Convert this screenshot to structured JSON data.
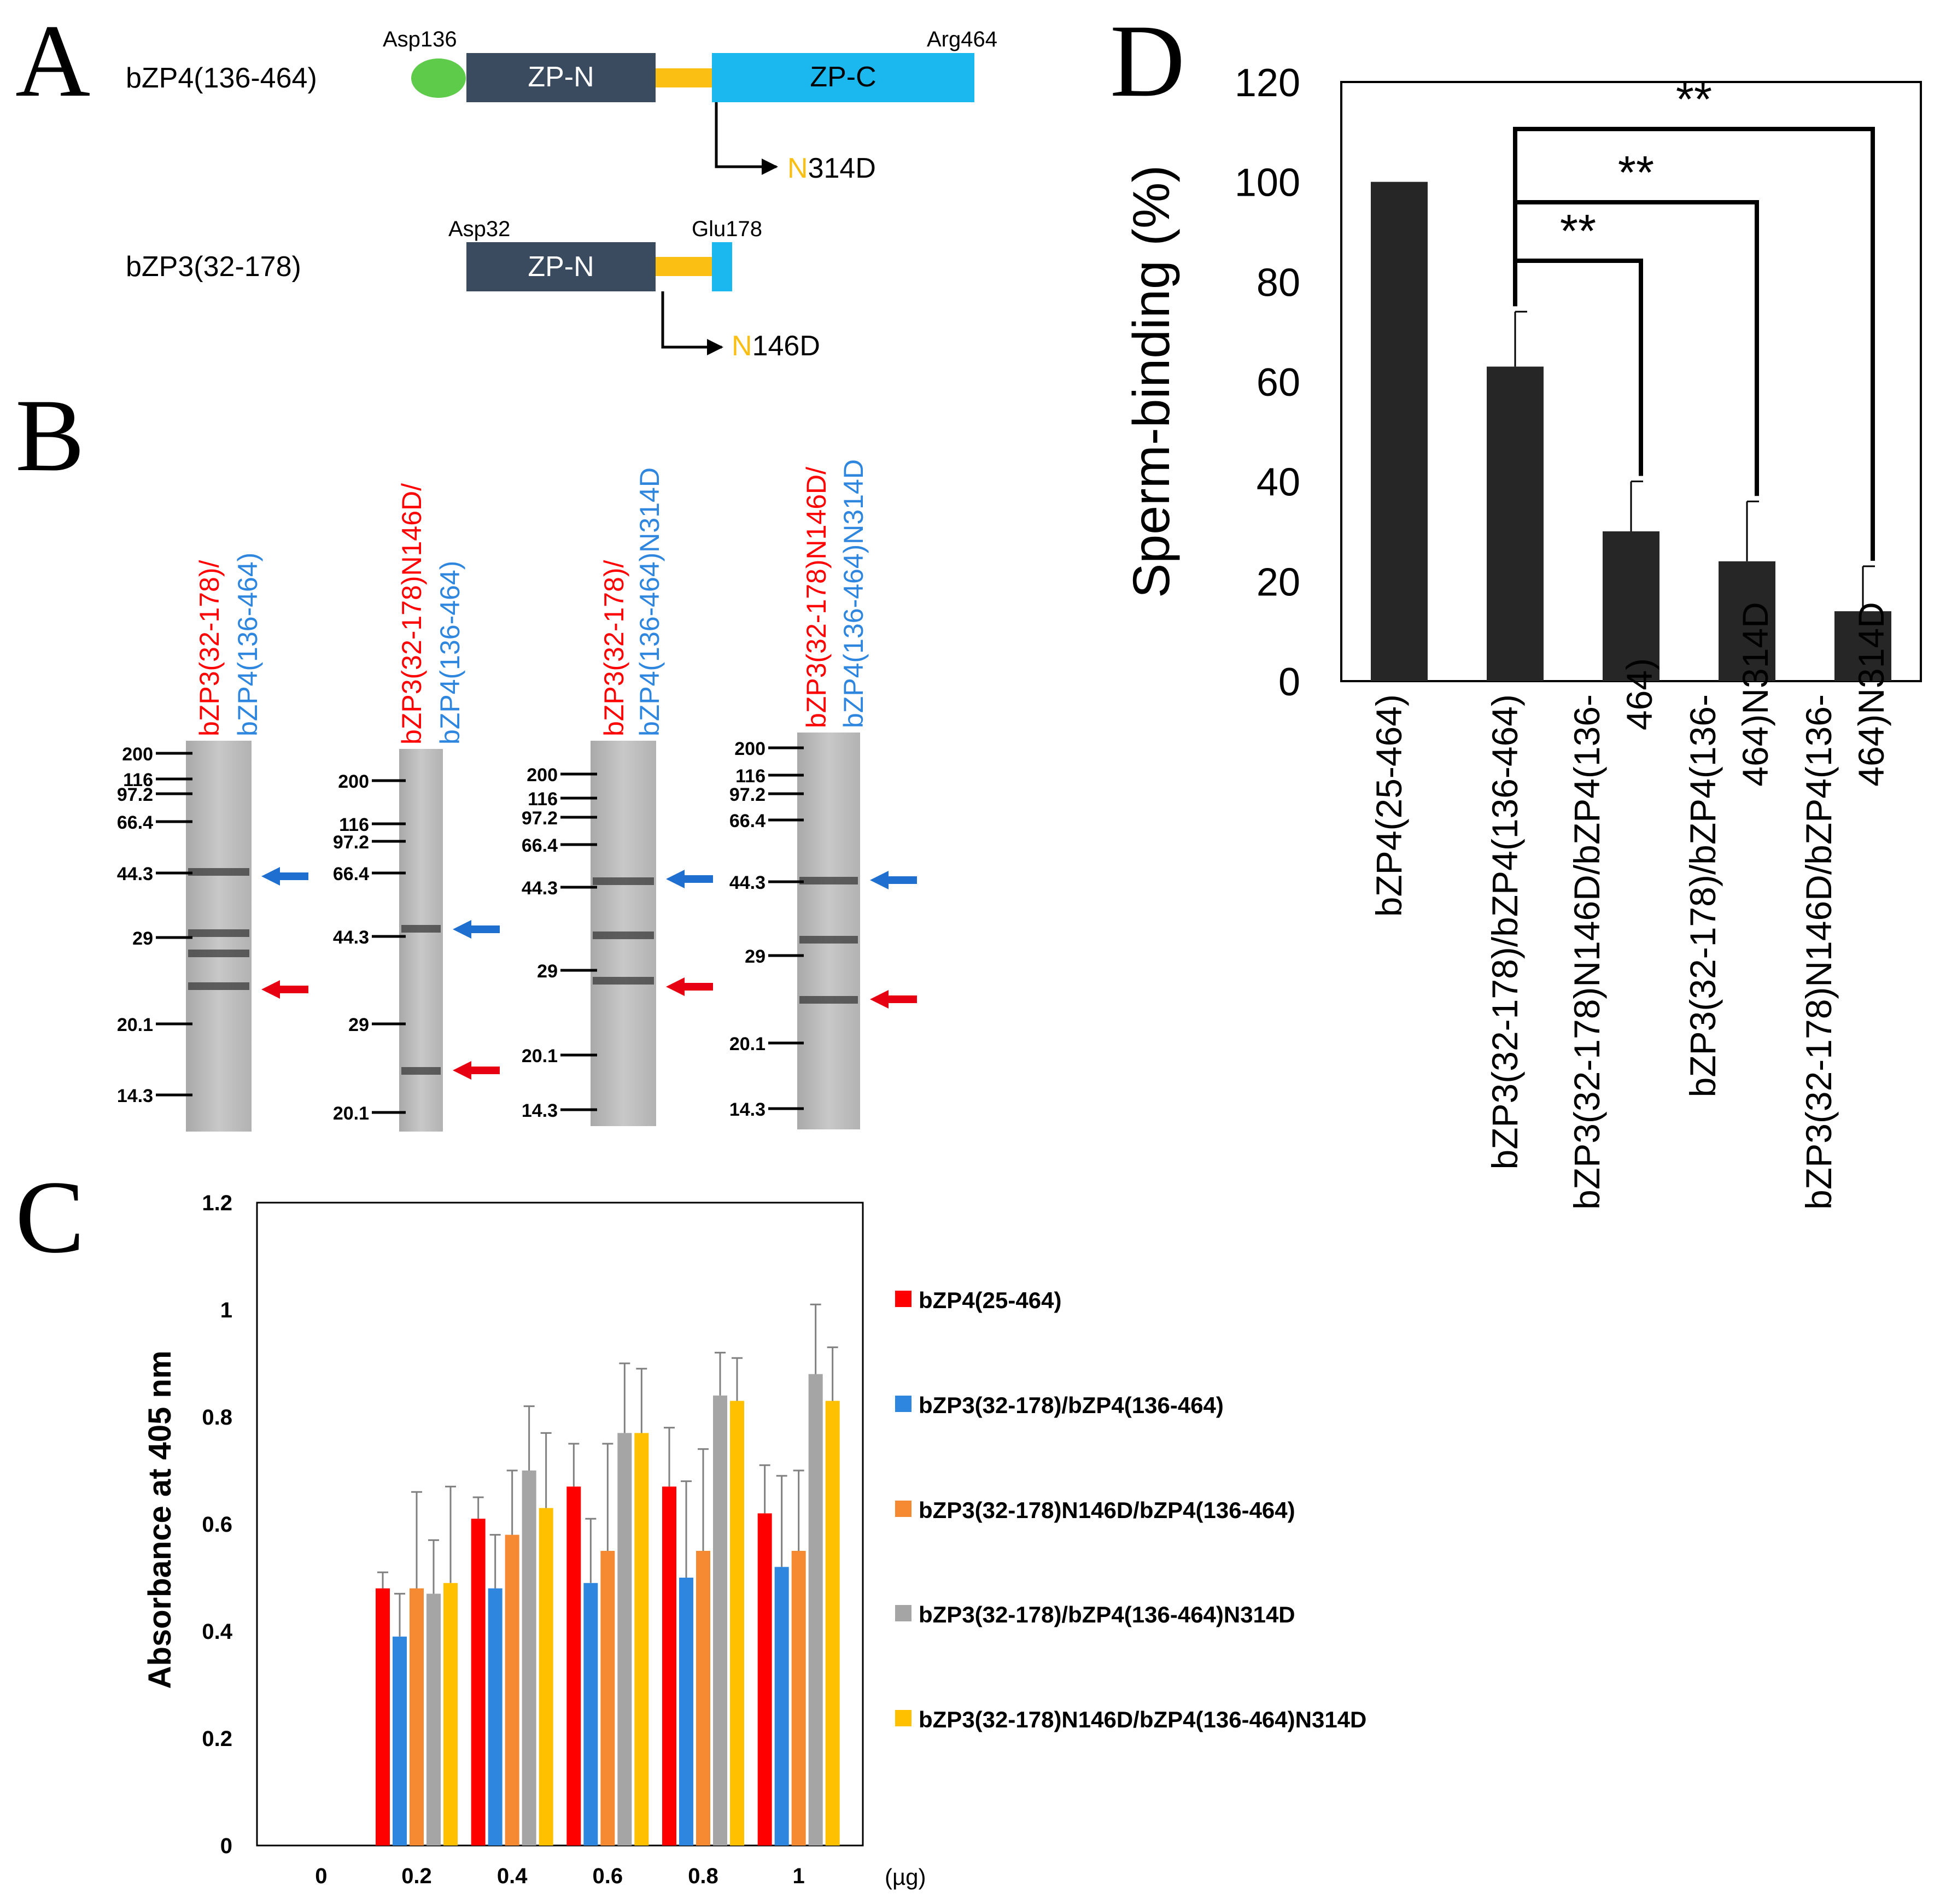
{
  "panels": {
    "a": "A",
    "b": "B",
    "c": "C",
    "d": "D"
  },
  "colors": {
    "red": "#ff0000",
    "blue": "#2e86de",
    "blue_marker": "#1f6fd1",
    "orange": "#f58a33",
    "gray": "#a5a5a5",
    "yellow": "#ffc000",
    "dark": "#3a4a5f",
    "cyan": "#1ab8ee",
    "green": "#5ecb4a",
    "gold": "#fbbf14"
  },
  "panelA": {
    "zp4": {
      "name": "bZP4(136-464)",
      "start": "Asp136",
      "end": "Arg464",
      "dom1": "ZP-N",
      "dom2": "ZP-C",
      "mut_letter": "N",
      "mut_rest": "314D"
    },
    "zp3": {
      "name": "bZP3(32-178)",
      "start": "Asp32",
      "end": "Glu178",
      "dom1": "ZP-N",
      "mut_letter": "N",
      "mut_rest": "146D"
    }
  },
  "panelB": {
    "gels": [
      {
        "top_red": "bZP3(32-178)/",
        "bottom_blue": "bZP4(136-464)",
        "markers": [
          "200",
          "116",
          "97.2",
          "66.4",
          "44.3",
          "29",
          "20.1",
          "14.3"
        ]
      },
      {
        "top_red": "bZP3(32-178)N146D/",
        "bottom_blue": "bZP4(136-464)",
        "markers": [
          "200",
          "116",
          "97.2",
          "66.4",
          "44.3",
          "29",
          "20.1"
        ]
      },
      {
        "top_red": "bZP3(32-178)/",
        "bottom_blue": "bZP4(136-464)N314D",
        "markers": [
          "200",
          "116",
          "97.2",
          "66.4",
          "44.3",
          "29",
          "20.1",
          "14.3"
        ]
      },
      {
        "top_red": "bZP3(32-178)N146D/",
        "bottom_blue": "bZP4(136-464)N314D",
        "markers": [
          "200",
          "116",
          "97.2",
          "66.4",
          "44.3",
          "29",
          "20.1",
          "14.3"
        ]
      }
    ]
  },
  "chart_data": [
    {
      "type": "bar",
      "id": "panel-C",
      "ylabel": "Absorbance at 405 nm",
      "xunit": "(µg)",
      "categories": [
        "0",
        "0.2",
        "0.4",
        "0.6",
        "0.8",
        "1"
      ],
      "yticks": [
        "0",
        "0.2",
        "0.4",
        "0.6",
        "0.8",
        "1",
        "1.2"
      ],
      "ylim": [
        0,
        1.2
      ],
      "legend_position": "right",
      "series": [
        {
          "name": "bZP4(25-464)",
          "values": [
            0,
            0.48,
            0.61,
            0.67,
            0.67,
            0.62
          ],
          "errors": [
            0,
            0.03,
            0.04,
            0.08,
            0.11,
            0.09
          ]
        },
        {
          "name": "bZP3(32-178)/bZP4(136-464)",
          "values": [
            0,
            0.39,
            0.48,
            0.49,
            0.5,
            0.52
          ],
          "errors": [
            0,
            0.08,
            0.1,
            0.12,
            0.18,
            0.17
          ]
        },
        {
          "name": "bZP3(32-178)N146D/bZP4(136-464)",
          "values": [
            0,
            0.48,
            0.58,
            0.55,
            0.55,
            0.55
          ],
          "errors": [
            0,
            0.18,
            0.12,
            0.2,
            0.19,
            0.15
          ]
        },
        {
          "name": "bZP3(32-178)/bZP4(136-464)N314D",
          "values": [
            0,
            0.47,
            0.7,
            0.77,
            0.84,
            0.88
          ],
          "errors": [
            0,
            0.1,
            0.12,
            0.13,
            0.08,
            0.13
          ]
        },
        {
          "name": "bZP3(32-178)N146D/bZP4(136-464)N314D",
          "values": [
            0,
            0.49,
            0.63,
            0.77,
            0.83,
            0.83
          ],
          "errors": [
            0,
            0.18,
            0.14,
            0.12,
            0.08,
            0.1
          ]
        }
      ]
    },
    {
      "type": "bar",
      "id": "panel-D",
      "ylabel": "Sperm-binding (%)",
      "ylim": [
        0,
        120
      ],
      "yticks": [
        "0",
        "20",
        "40",
        "60",
        "80",
        "100",
        "120"
      ],
      "categories": [
        [
          "bZP4(25-464)"
        ],
        [
          "bZP3(32-178)/bZP4(136-464)"
        ],
        [
          "bZP3(32-178)N146D/bZP4(136-",
          "464)"
        ],
        [
          "bZP3(32-178)/bZP4(136-",
          "464)N314D"
        ],
        [
          "bZP3(32-178)N146D/bZP4(136-",
          "464)N314D"
        ]
      ],
      "values": [
        100,
        63,
        30,
        24,
        14
      ],
      "errors": [
        0,
        11,
        10,
        12,
        9
      ],
      "significance": [
        "**",
        "**",
        "**"
      ]
    }
  ]
}
